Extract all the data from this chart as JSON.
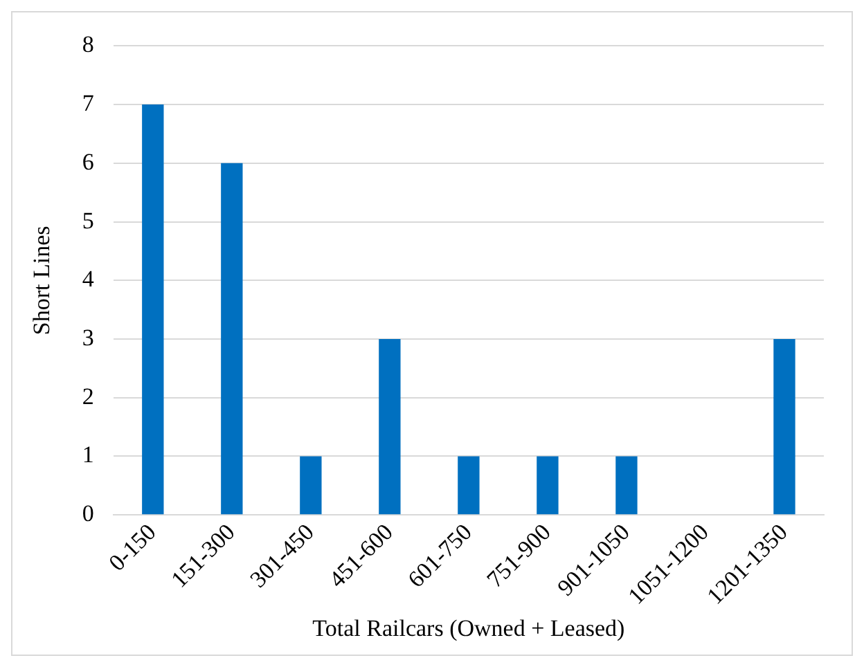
{
  "chart_data": {
    "type": "bar",
    "xlabel": "Total Railcars (Owned + Leased)",
    "ylabel": "Short Lines",
    "categories": [
      "0-150",
      "151-300",
      "301-450",
      "451-600",
      "601-750",
      "751-900",
      "901-1050",
      "1051-1200",
      "1201-1350"
    ],
    "values": [
      7,
      6,
      1,
      3,
      1,
      1,
      1,
      0,
      3
    ],
    "color": "#0070c0",
    "ylim": [
      0,
      8
    ],
    "yticks": [
      0,
      1,
      2,
      3,
      4,
      5,
      6,
      7,
      8
    ],
    "grid": "y"
  }
}
